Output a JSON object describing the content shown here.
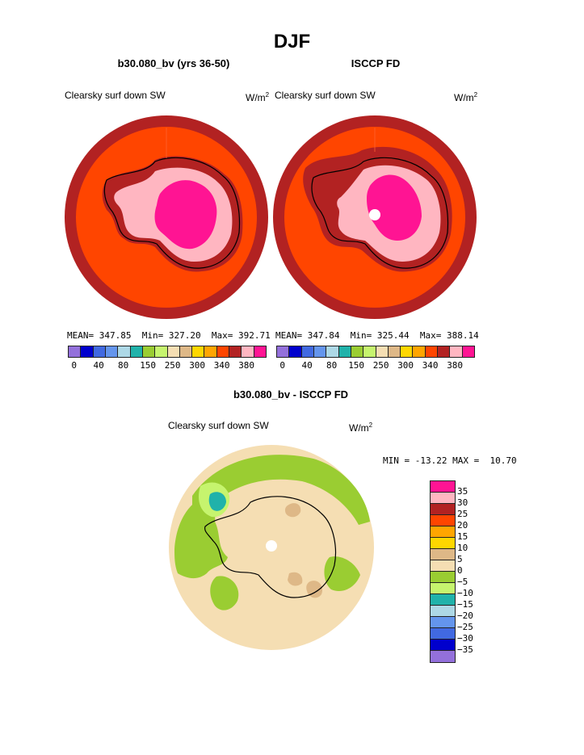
{
  "title": "DJF",
  "left_panel": {
    "subtitle": "b30.080_bv (yrs 36-50)",
    "variable": "Clearsky surf down SW",
    "units_base": "W/m",
    "units_exp": "2",
    "mean": "MEAN= 347.85",
    "min": "Min= 327.20",
    "max": "Max= 392.71"
  },
  "right_panel": {
    "subtitle": "ISCCP FD",
    "variable": "Clearsky surf down SW",
    "units_base": "W/m",
    "units_exp": "2",
    "mean": "MEAN= 347.84",
    "min": "Min= 325.44",
    "max": "Max= 388.14"
  },
  "top_colorbar": {
    "colors": [
      "#9370db",
      "#0000cd",
      "#4169e1",
      "#6495ed",
      "#add8e6",
      "#20b2aa",
      "#9acd32",
      "#c6f46e",
      "#f5deb3",
      "#deb887",
      "#ffd700",
      "#ffa500",
      "#ff4500",
      "#b22222",
      "#ffb6c1",
      "#ff1493"
    ],
    "labels": [
      "0",
      "40",
      "80",
      "150",
      "250",
      "300",
      "340",
      "380"
    ]
  },
  "diff_panel": {
    "subtitle": "b30.080_bv - ISCCP FD",
    "variable": "Clearsky surf down SW",
    "units_base": "W/m",
    "units_exp": "2",
    "minmax": "MIN = -13.22 MAX =  10.70"
  },
  "diff_colorbar": {
    "colors": [
      "#ff1493",
      "#ffb6c1",
      "#b22222",
      "#ff4500",
      "#ffa500",
      "#ffd700",
      "#deb887",
      "#f5deb3",
      "#9acd32",
      "#c6f46e",
      "#20b2aa",
      "#add8e6",
      "#6495ed",
      "#4169e1",
      "#0000cd",
      "#9370db"
    ],
    "labels": [
      "35",
      "30",
      "25",
      "20",
      "15",
      "10",
      "5",
      "0",
      "−5",
      "−10",
      "−15",
      "−20",
      "−25",
      "−30",
      "−35"
    ]
  },
  "map_colors": {
    "outer": "#b22222",
    "ocean": "#ff4500",
    "ice_edge": "#b22222",
    "plateau_light": "#ffb6c1",
    "plateau_core": "#ff1493",
    "diff_base": "#f5deb3",
    "diff_green": "#9acd32",
    "diff_lightgreen": "#c6f46e",
    "diff_tan": "#deb887",
    "diff_teal": "#20b2aa"
  }
}
